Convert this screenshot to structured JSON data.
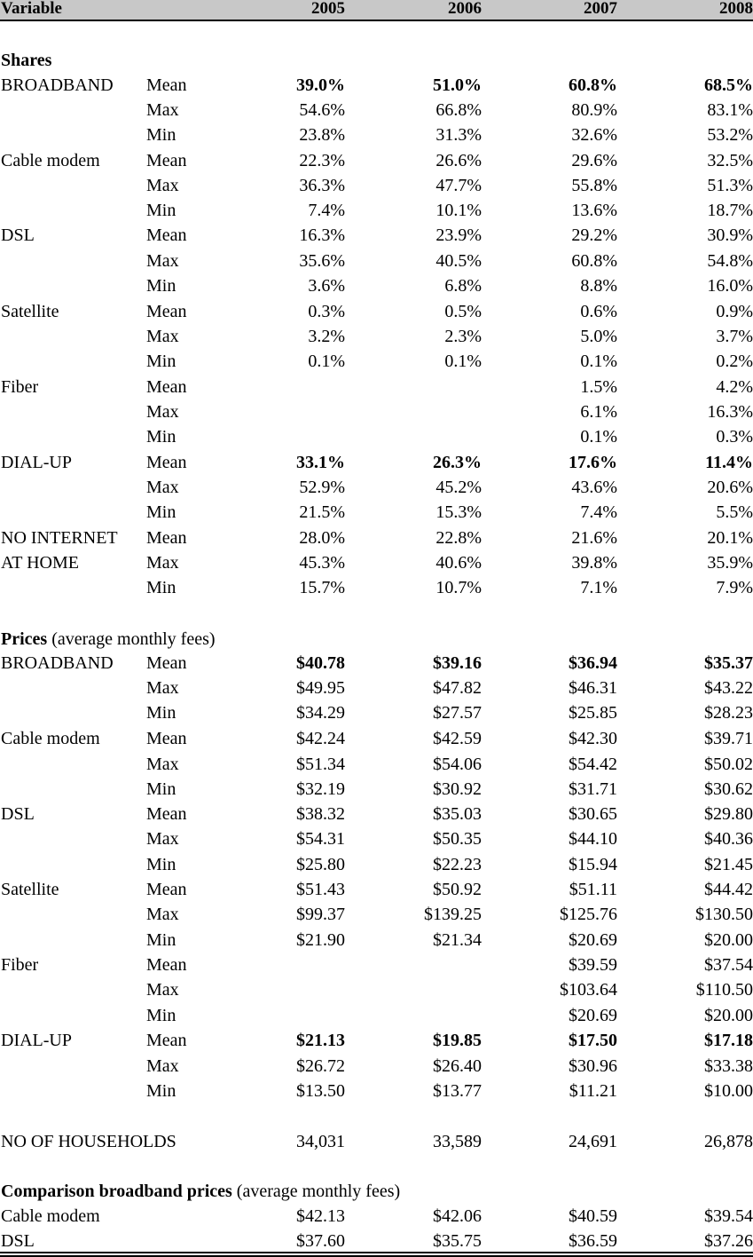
{
  "header": {
    "variable": "Variable",
    "years": [
      "2005",
      "2006",
      "2007",
      "2008"
    ]
  },
  "rows": [
    {
      "type": "section",
      "label": "Shares",
      "sub": ""
    },
    {
      "var": "BROADBAND",
      "stat": "Mean",
      "vals": [
        "39.0%",
        "51.0%",
        "60.8%",
        "68.5%"
      ],
      "bold": true
    },
    {
      "var": "",
      "stat": "Max",
      "vals": [
        "54.6%",
        "66.8%",
        "80.9%",
        "83.1%"
      ]
    },
    {
      "var": "",
      "stat": "Min",
      "vals": [
        "23.8%",
        "31.3%",
        "32.6%",
        "53.2%"
      ]
    },
    {
      "var": "Cable modem",
      "stat": "Mean",
      "vals": [
        "22.3%",
        "26.6%",
        "29.6%",
        "32.5%"
      ]
    },
    {
      "var": "",
      "stat": "Max",
      "vals": [
        "36.3%",
        "47.7%",
        "55.8%",
        "51.3%"
      ]
    },
    {
      "var": "",
      "stat": "Min",
      "vals": [
        "7.4%",
        "10.1%",
        "13.6%",
        "18.7%"
      ]
    },
    {
      "var": "DSL",
      "stat": "Mean",
      "vals": [
        "16.3%",
        "23.9%",
        "29.2%",
        "30.9%"
      ]
    },
    {
      "var": "",
      "stat": "Max",
      "vals": [
        "35.6%",
        "40.5%",
        "60.8%",
        "54.8%"
      ]
    },
    {
      "var": "",
      "stat": "Min",
      "vals": [
        "3.6%",
        "6.8%",
        "8.8%",
        "16.0%"
      ]
    },
    {
      "var": "Satellite",
      "stat": "Mean",
      "vals": [
        "0.3%",
        "0.5%",
        "0.6%",
        "0.9%"
      ]
    },
    {
      "var": "",
      "stat": "Max",
      "vals": [
        "3.2%",
        "2.3%",
        "5.0%",
        "3.7%"
      ]
    },
    {
      "var": "",
      "stat": "Min",
      "vals": [
        "0.1%",
        "0.1%",
        "0.1%",
        "0.2%"
      ]
    },
    {
      "var": "Fiber",
      "stat": "Mean",
      "vals": [
        "",
        "",
        "1.5%",
        "4.2%"
      ]
    },
    {
      "var": "",
      "stat": "Max",
      "vals": [
        "",
        "",
        "6.1%",
        "16.3%"
      ]
    },
    {
      "var": "",
      "stat": "Min",
      "vals": [
        "",
        "",
        "0.1%",
        "0.3%"
      ]
    },
    {
      "var": "DIAL-UP",
      "stat": "Mean",
      "vals": [
        "33.1%",
        "26.3%",
        "17.6%",
        "11.4%"
      ],
      "bold": true
    },
    {
      "var": "",
      "stat": "Max",
      "vals": [
        "52.9%",
        "45.2%",
        "43.6%",
        "20.6%"
      ]
    },
    {
      "var": "",
      "stat": "Min",
      "vals": [
        "21.5%",
        "15.3%",
        "7.4%",
        "5.5%"
      ]
    },
    {
      "var": "NO INTERNET",
      "stat": "Mean",
      "vals": [
        "28.0%",
        "22.8%",
        "21.6%",
        "20.1%"
      ]
    },
    {
      "var": "AT HOME",
      "stat": "Max",
      "vals": [
        "45.3%",
        "40.6%",
        "39.8%",
        "35.9%"
      ]
    },
    {
      "var": "",
      "stat": "Min",
      "vals": [
        "15.7%",
        "10.7%",
        "7.1%",
        "7.9%"
      ]
    },
    {
      "type": "section",
      "label": "Prices",
      "sub": " (average monthly fees)"
    },
    {
      "var": "BROADBAND",
      "stat": "Mean",
      "vals": [
        "$40.78",
        "$39.16",
        "$36.94",
        "$35.37"
      ],
      "bold": true
    },
    {
      "var": "",
      "stat": "Max",
      "vals": [
        "$49.95",
        "$47.82",
        "$46.31",
        "$43.22"
      ]
    },
    {
      "var": "",
      "stat": "Min",
      "vals": [
        "$34.29",
        "$27.57",
        "$25.85",
        "$28.23"
      ]
    },
    {
      "var": "Cable modem",
      "stat": "Mean",
      "vals": [
        "$42.24",
        "$42.59",
        "$42.30",
        "$39.71"
      ]
    },
    {
      "var": "",
      "stat": "Max",
      "vals": [
        "$51.34",
        "$54.06",
        "$54.42",
        "$50.02"
      ]
    },
    {
      "var": "",
      "stat": "Min",
      "vals": [
        "$32.19",
        "$30.92",
        "$31.71",
        "$30.62"
      ]
    },
    {
      "var": "DSL",
      "stat": "Mean",
      "vals": [
        "$38.32",
        "$35.03",
        "$30.65",
        "$29.80"
      ]
    },
    {
      "var": "",
      "stat": "Max",
      "vals": [
        "$54.31",
        "$50.35",
        "$44.10",
        "$40.36"
      ]
    },
    {
      "var": "",
      "stat": "Min",
      "vals": [
        "$25.80",
        "$22.23",
        "$15.94",
        "$21.45"
      ]
    },
    {
      "var": "Satellite",
      "stat": "Mean",
      "vals": [
        "$51.43",
        "$50.92",
        "$51.11",
        "$44.42"
      ]
    },
    {
      "var": "",
      "stat": "Max",
      "vals": [
        "$99.37",
        "$139.25",
        "$125.76",
        "$130.50"
      ]
    },
    {
      "var": "",
      "stat": "Min",
      "vals": [
        "$21.90",
        "$21.34",
        "$20.69",
        "$20.00"
      ]
    },
    {
      "var": "Fiber",
      "stat": "Mean",
      "vals": [
        "",
        "",
        "$39.59",
        "$37.54"
      ]
    },
    {
      "var": "",
      "stat": "Max",
      "vals": [
        "",
        "",
        "$103.64",
        "$110.50"
      ]
    },
    {
      "var": "",
      "stat": "Min",
      "vals": [
        "",
        "",
        "$20.69",
        "$20.00"
      ]
    },
    {
      "var": "DIAL-UP",
      "stat": "Mean",
      "vals": [
        "$21.13",
        "$19.85",
        "$17.50",
        "$17.18"
      ],
      "bold": true
    },
    {
      "var": "",
      "stat": "Max",
      "vals": [
        "$26.72",
        "$26.40",
        "$30.96",
        "$33.38"
      ]
    },
    {
      "var": "",
      "stat": "Min",
      "vals": [
        "$13.50",
        "$13.77",
        "$11.21",
        "$10.00"
      ]
    },
    {
      "var": "NO OF HOUSEHOLDS",
      "stat": "",
      "vals": [
        "34,031",
        "33,589",
        "24,691",
        "26,878"
      ]
    },
    {
      "type": "section",
      "label": "Comparison broadband prices",
      "sub": " (average monthly fees)"
    },
    {
      "var": "Cable modem",
      "stat": "",
      "vals": [
        "$42.13",
        "$42.06",
        "$40.59",
        "$39.54"
      ]
    },
    {
      "var": "DSL",
      "stat": "",
      "vals": [
        "$37.60",
        "$35.75",
        "$36.59",
        "$37.26"
      ]
    }
  ]
}
